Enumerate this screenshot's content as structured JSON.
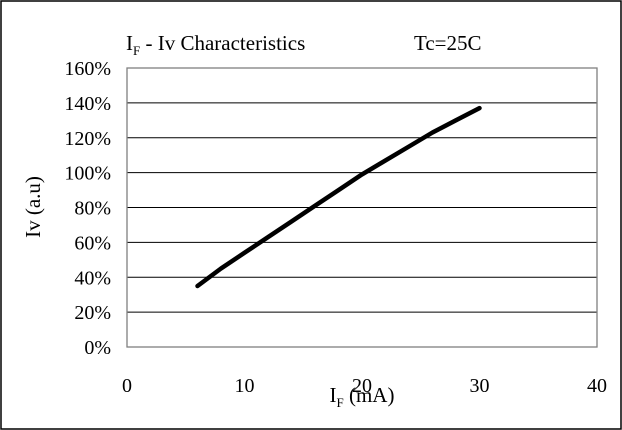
{
  "chart_data": {
    "type": "line",
    "title": {
      "main": "I",
      "sub": "F",
      "rest": " - Iv Characteristics"
    },
    "condition": "Tc=25C",
    "xlabel": {
      "main": "I",
      "sub": "F",
      "rest": " (mA)"
    },
    "ylabel": "Iv (a.u)",
    "xlim": [
      0,
      40
    ],
    "ylim": [
      0,
      1.6
    ],
    "x_ticks": [
      "0",
      "10",
      "20",
      "30",
      "40"
    ],
    "y_ticks": [
      "0%",
      "20%",
      "40%",
      "60%",
      "80%",
      "100%",
      "120%",
      "140%",
      "160%"
    ],
    "grid": "horizontal",
    "series": [
      {
        "color": "#000000",
        "x": [
          6,
          8,
          10,
          12,
          14,
          16,
          18,
          20,
          22,
          24,
          26,
          28,
          30
        ],
        "y": [
          0.35,
          0.45,
          0.54,
          0.63,
          0.72,
          0.81,
          0.9,
          0.99,
          1.07,
          1.15,
          1.23,
          1.3,
          1.37
        ]
      }
    ]
  }
}
